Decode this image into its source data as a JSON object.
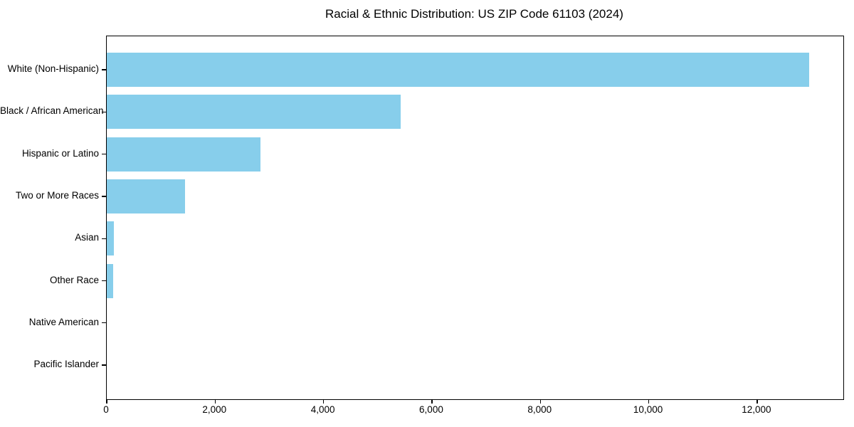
{
  "chart_data": {
    "type": "bar",
    "orientation": "horizontal",
    "title": "Racial & Ethnic Distribution: US ZIP Code 61103 (2024)",
    "categories": [
      "White (Non-Hispanic)",
      "Black / African American",
      "Hispanic or Latino",
      "Two or More Races",
      "Asian",
      "Other Race",
      "Native American",
      "Pacific Islander"
    ],
    "values": [
      12960,
      5420,
      2830,
      1450,
      130,
      115,
      0,
      0
    ],
    "bar_color": "#87CEEB",
    "axis_color": "#000000",
    "background_color": "#ffffff",
    "xlabel": "",
    "ylabel": "",
    "xlim": [
      0,
      13590
    ],
    "xticks": {
      "values": [
        0,
        2000,
        4000,
        6000,
        8000,
        10000,
        12000
      ],
      "labels": [
        "0",
        "2,000",
        "4,000",
        "6,000",
        "8,000",
        "10,000",
        "12,000"
      ]
    },
    "grid": false,
    "legend": null
  }
}
